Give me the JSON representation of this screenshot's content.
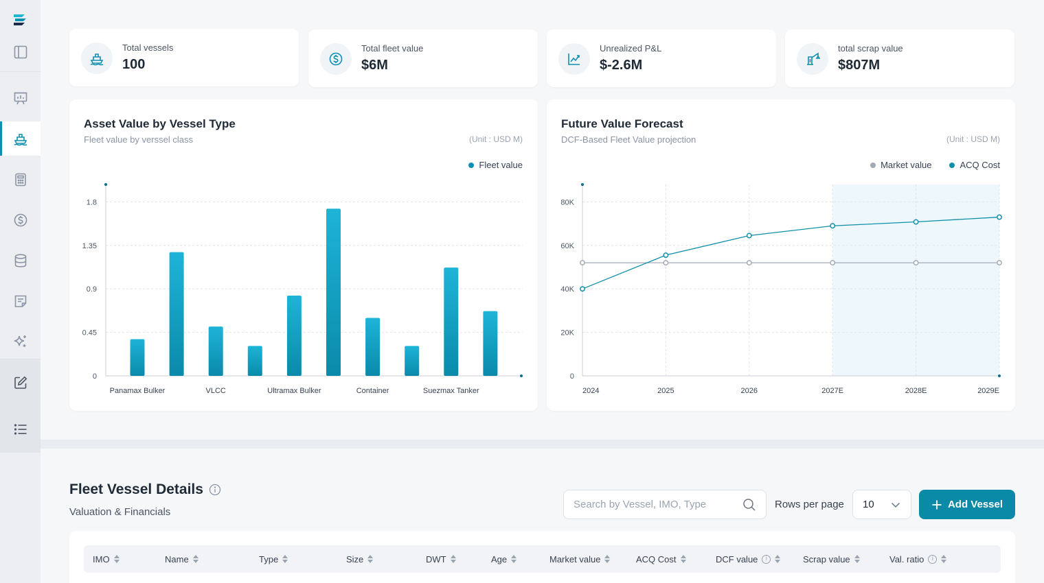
{
  "kpis": [
    {
      "label": "Total vessels",
      "value": "100",
      "icon": "ship-icon"
    },
    {
      "label": "Total fleet value",
      "value": "$6M",
      "icon": "dollar-circle-icon"
    },
    {
      "label": "Unrealized P&L",
      "value": "$-2.6M",
      "icon": "trend-chart-icon"
    },
    {
      "label": "total scrap value",
      "value": "$807M",
      "icon": "crane-icon"
    }
  ],
  "asset_chart": {
    "title": "Asset Value by Vessel Type",
    "subtitle": "Fleet value by verssel class",
    "unit": "(Unit : USD M)",
    "legend": "Fleet value"
  },
  "forecast_chart": {
    "title": "Future Value Forecast",
    "subtitle": "DCF-Based Fleet Value projection",
    "unit": "(Unit : USD M)",
    "legend_market": "Market value",
    "legend_acq": "ACQ Cost"
  },
  "chart_data": [
    {
      "type": "bar",
      "title": "Asset Value by Vessel Type",
      "subtitle": "Fleet value by verssel class",
      "categories": [
        "Panamax Bulker",
        "",
        "VLCC",
        "",
        "Ultramax Bulker",
        "",
        "Container",
        "",
        "Suezmax Tanker",
        ""
      ],
      "tick_labels": [
        "Panamax Bulker",
        "VLCC",
        "Ultramax Bulker",
        "Container",
        "Suezmax Tanker"
      ],
      "series": [
        {
          "name": "Fleet value",
          "values": [
            0.38,
            1.28,
            0.51,
            0.31,
            0.83,
            1.73,
            0.6,
            0.31,
            1.12,
            0.67
          ]
        }
      ],
      "yticks": [
        0,
        0.45,
        0.9,
        1.35,
        1.8
      ],
      "ylim": [
        0,
        1.98
      ],
      "grid": true,
      "legend_position": "top-right",
      "color": "#139ec2"
    },
    {
      "type": "line",
      "title": "Future Value Forecast",
      "subtitle": "DCF-Based Fleet Value projection",
      "x": [
        "2024",
        "2025",
        "2026",
        "2027E",
        "2028E",
        "2029E"
      ],
      "series": [
        {
          "name": "Market value",
          "values": [
            52000,
            52000,
            52000,
            52000,
            52000,
            52000
          ],
          "color": "#a3aab5"
        },
        {
          "name": "ACQ Cost",
          "values": [
            40000,
            55500,
            64500,
            69000,
            70800,
            73000
          ],
          "color": "#0e8fa8"
        }
      ],
      "yticks": [
        0,
        20000,
        40000,
        60000,
        80000
      ],
      "ytick_labels": [
        "0",
        "20K",
        "40K",
        "60K",
        "80K"
      ],
      "ylim": [
        0,
        88000
      ],
      "grid": true,
      "legend_position": "top-right",
      "forecast_region": [
        "2027E",
        "2029E"
      ]
    }
  ],
  "fleet": {
    "title": "Fleet Vessel Details",
    "subtitle": "Valuation & Financials",
    "search_placeholder": "Search by Vessel, IMO, Type",
    "rows_label": "Rows per page",
    "rows_value": "10",
    "add_label": "Add Vessel",
    "columns": [
      {
        "label": "IMO",
        "info": false
      },
      {
        "label": "Name",
        "info": false
      },
      {
        "label": "Type",
        "info": false
      },
      {
        "label": "Size",
        "info": false
      },
      {
        "label": "DWT",
        "info": false
      },
      {
        "label": "Age",
        "info": false
      },
      {
        "label": "Market value",
        "info": false
      },
      {
        "label": "ACQ Cost",
        "info": false
      },
      {
        "label": "DCF value",
        "info": true
      },
      {
        "label": "Scrap value",
        "info": false
      },
      {
        "label": "Val. ratio",
        "info": true
      }
    ]
  },
  "sidebar": {
    "items": [
      {
        "icon": "panel-icon"
      },
      {
        "icon": "presentation-icon"
      },
      {
        "icon": "ship-icon",
        "active": true
      },
      {
        "icon": "calculator-icon"
      },
      {
        "icon": "dollar-icon"
      },
      {
        "icon": "database-icon"
      },
      {
        "icon": "report-icon"
      },
      {
        "icon": "sparkle-icon"
      },
      {
        "icon": "edit-icon"
      },
      {
        "icon": "list-icon"
      }
    ]
  }
}
